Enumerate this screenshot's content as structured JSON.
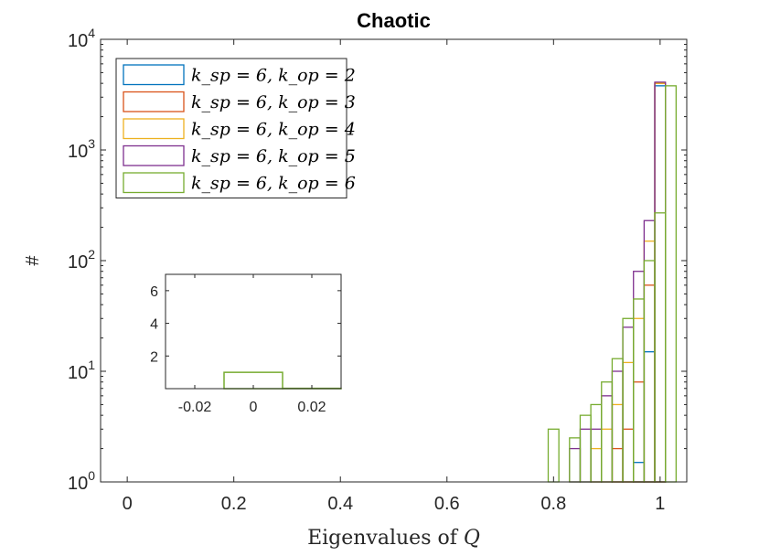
{
  "chart_data": [
    {
      "type": "histogram",
      "title": "Chaotic",
      "xlabel": "Eigenvalues of Q",
      "ylabel": "#",
      "yscale": "log",
      "xlim": [
        -0.05,
        1.05
      ],
      "ylim": [
        1,
        10000
      ],
      "x_ticks": [
        "0",
        "0.2",
        "0.4",
        "0.6",
        "0.8",
        "1"
      ],
      "y_ticks": [
        {
          "base": "10",
          "exp": "0"
        },
        {
          "base": "10",
          "exp": "1"
        },
        {
          "base": "10",
          "exp": "2"
        },
        {
          "base": "10",
          "exp": "3"
        },
        {
          "base": "10",
          "exp": "4"
        }
      ],
      "bin_width": 0.02,
      "legend_position": "top-left",
      "series": [
        {
          "name": "k_sp = 6, k_op = 2",
          "color": "#0072BD",
          "bins": [
            [
              0.95,
              1.5
            ],
            [
              0.97,
              15
            ],
            [
              0.99,
              3800
            ]
          ]
        },
        {
          "name": "k_sp = 6, k_op = 3",
          "color": "#D95319",
          "bins": [
            [
              0.91,
              2
            ],
            [
              0.93,
              3
            ],
            [
              0.95,
              8
            ],
            [
              0.97,
              60
            ],
            [
              0.99,
              4000
            ]
          ]
        },
        {
          "name": "k_sp = 6, k_op = 4",
          "color": "#EDB120",
          "bins": [
            [
              0.87,
              2
            ],
            [
              0.89,
              3
            ],
            [
              0.91,
              5
            ],
            [
              0.93,
              12
            ],
            [
              0.95,
              30
            ],
            [
              0.97,
              150
            ],
            [
              0.99,
              4000
            ]
          ]
        },
        {
          "name": "k_sp = 6, k_op = 5",
          "color": "#7E2F8E",
          "bins": [
            [
              0.83,
              2
            ],
            [
              0.85,
              3
            ],
            [
              0.87,
              3
            ],
            [
              0.89,
              6
            ],
            [
              0.91,
              10
            ],
            [
              0.93,
              25
            ],
            [
              0.95,
              80
            ],
            [
              0.97,
              230
            ],
            [
              0.99,
              4100
            ]
          ]
        },
        {
          "name": "k_sp = 6, k_op = 6",
          "color": "#77AC30",
          "bins": [
            [
              0.79,
              3
            ],
            [
              0.83,
              2.5
            ],
            [
              0.85,
              4
            ],
            [
              0.87,
              5
            ],
            [
              0.89,
              8
            ],
            [
              0.91,
              13
            ],
            [
              0.93,
              30
            ],
            [
              0.95,
              45
            ],
            [
              0.97,
              100
            ],
            [
              0.99,
              270
            ],
            [
              1.01,
              3800
            ]
          ]
        }
      ]
    },
    {
      "type": "histogram",
      "xlim": [
        -0.03,
        0.03
      ],
      "ylim": [
        0,
        7
      ],
      "x_ticks": [
        "-0.02",
        "0",
        "0.02"
      ],
      "y_ticks": [
        "2",
        "4",
        "6"
      ],
      "bins": [
        [
          -0.01,
          0.01,
          1
        ],
        [
          0.01,
          0.03,
          0.02
        ]
      ],
      "color": "#77AC30"
    }
  ]
}
